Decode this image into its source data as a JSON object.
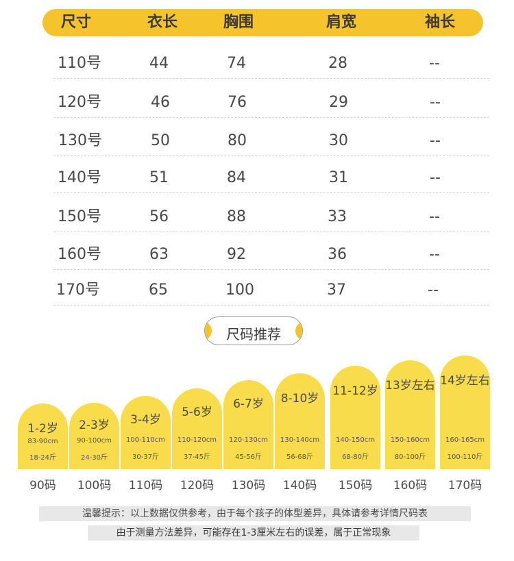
{
  "table": {
    "headers": [
      "尺寸",
      "衣长",
      "胸围",
      "肩宽",
      "袖长"
    ],
    "rows": [
      [
        "110号",
        "44",
        "74",
        "28",
        "--"
      ],
      [
        "120号",
        "46",
        "76",
        "29",
        "--"
      ],
      [
        "130号",
        "50",
        "80",
        "30",
        "--"
      ],
      [
        "140号",
        "51",
        "84",
        "31",
        "--"
      ],
      [
        "150号",
        "56",
        "88",
        "33",
        "--"
      ],
      [
        "160号",
        "63",
        "92",
        "36",
        "--"
      ],
      [
        "170号",
        "65",
        "100",
        "37",
        "--"
      ]
    ]
  },
  "recommend": {
    "title": "尺码推荐",
    "items": [
      {
        "age": "1-2岁",
        "height": "83-90cm",
        "weight": "18-24斤",
        "size": "90码"
      },
      {
        "age": "2-3岁",
        "height": "90-100cm",
        "weight": "24-30斤",
        "size": "100码"
      },
      {
        "age": "3-4岁",
        "height": "100-110cm",
        "weight": "30-37斤",
        "size": "110码"
      },
      {
        "age": "5-6岁",
        "height": "110-120cm",
        "weight": "37-45斤",
        "size": "120码"
      },
      {
        "age": "6-7岁",
        "height": "120-130cm",
        "weight": "45-56斤",
        "size": "130码"
      },
      {
        "age": "8-10岁",
        "height": "130-140cm",
        "weight": "56-68斤",
        "size": "140码"
      },
      {
        "age": "11-12岁",
        "height": "140-150cm",
        "weight": "68-80斤",
        "size": "150码"
      },
      {
        "age": "13岁左右",
        "height": "150-160cm",
        "weight": "80-100斤",
        "size": "160码"
      },
      {
        "age": "14岁左右",
        "height": "160-165cm",
        "weight": "100-110斤",
        "size": "170码"
      }
    ]
  },
  "notes": {
    "line1": "温馨提示：以上数据仅供参考，由于每个孩子的体型差异，具体请参考详情尺码表",
    "line2": "由于测量方法差异，可能存在1-3厘米左右的误差，属于正常现象"
  },
  "colors": {
    "accent": "#f5c42c",
    "tomb": "#f9dc4c"
  }
}
